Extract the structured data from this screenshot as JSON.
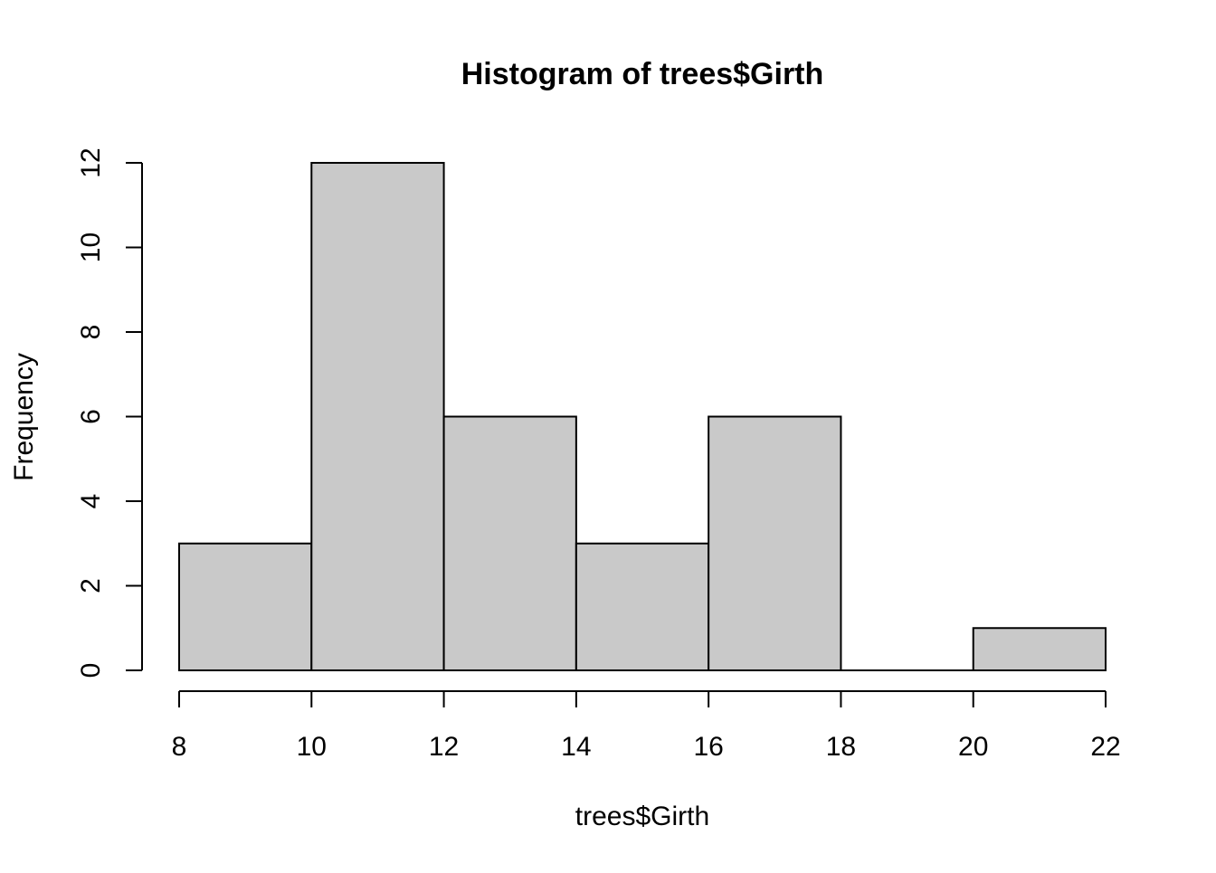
{
  "chart_data": {
    "type": "bar",
    "title": "Histogram of trees$Girth",
    "xlabel": "trees$Girth",
    "ylabel": "Frequency",
    "bins": [
      {
        "from": 8,
        "to": 10,
        "count": 3
      },
      {
        "from": 10,
        "to": 12,
        "count": 12
      },
      {
        "from": 12,
        "to": 14,
        "count": 6
      },
      {
        "from": 14,
        "to": 16,
        "count": 3
      },
      {
        "from": 16,
        "to": 18,
        "count": 6
      },
      {
        "from": 18,
        "to": 20,
        "count": 0
      },
      {
        "from": 20,
        "to": 22,
        "count": 1
      }
    ],
    "xlim": [
      8,
      22
    ],
    "ylim": [
      0,
      12
    ],
    "x_ticks": [
      8,
      10,
      12,
      14,
      16,
      18,
      20,
      22
    ],
    "y_ticks": [
      0,
      2,
      4,
      6,
      8,
      10,
      12
    ],
    "bar_fill": "#c9c9c9",
    "bar_stroke": "#000000",
    "grid": false,
    "legend": "none"
  }
}
